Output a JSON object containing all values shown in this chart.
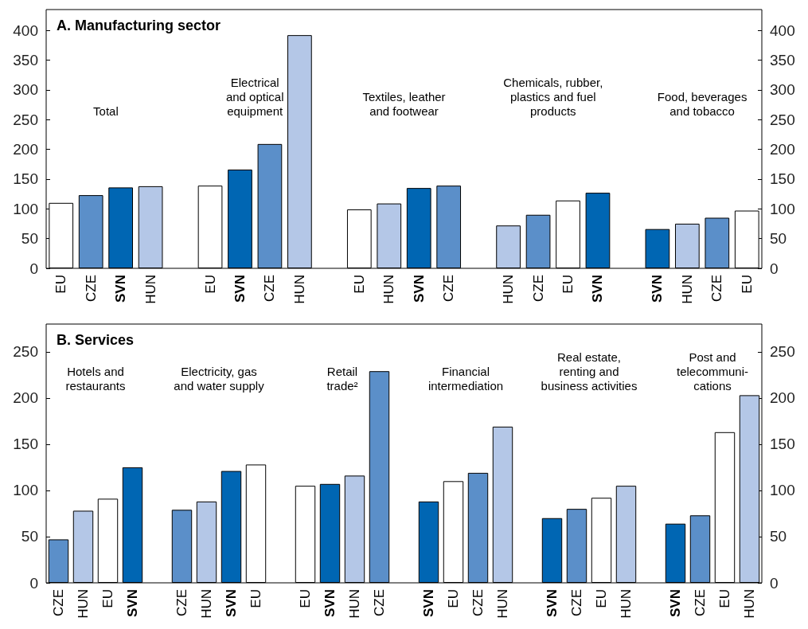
{
  "chart_data": [
    {
      "type": "bar",
      "title": "A. Manufacturing sector",
      "categories": [
        "EU",
        "CZE",
        "SVN",
        "HUN",
        null,
        "EU",
        "SVN",
        "CZE",
        "HUN",
        null,
        "EU",
        "HUN",
        "SVN",
        "CZE",
        null,
        "HUN",
        "CZE",
        "EU",
        "SVN",
        null,
        "SVN",
        "HUN",
        "CZE",
        "EU"
      ],
      "values": [
        110,
        123,
        136,
        138,
        null,
        139,
        166,
        209,
        392,
        null,
        99,
        109,
        135,
        139,
        null,
        72,
        90,
        114,
        127,
        null,
        66,
        75,
        85,
        97
      ],
      "colors": [
        "#ffffff",
        "#5b8fc9",
        "#0066b3",
        "#b4c7e7",
        "#ffffff",
        "#ffffff",
        "#0066b3",
        "#5b8fc9",
        "#b4c7e7",
        "#ffffff",
        "#ffffff",
        "#b4c7e7",
        "#0066b3",
        "#5b8fc9",
        "#ffffff",
        "#b4c7e7",
        "#5b8fc9",
        "#ffffff",
        "#0066b3",
        "#ffffff",
        "#0066b3",
        "#b4c7e7",
        "#5b8fc9",
        "#ffffff"
      ],
      "annotations": [
        "Total",
        "Electrical\nand optical\nequipment",
        "Textiles, leather\nand footwear",
        "Chemicals, rubber,\nplastics and fuel\nproducts",
        "Food, beverages\nand tobacco"
      ],
      "ylim": [
        0,
        435
      ],
      "yticks": [
        0,
        50,
        100,
        150,
        200,
        250,
        300,
        350,
        400
      ],
      "y2lim": [
        0,
        435
      ],
      "y2ticks": [
        0,
        50,
        100,
        150,
        200,
        250,
        300,
        350,
        400
      ]
    },
    {
      "type": "bar",
      "title": "B. Services",
      "categories": [
        "CZE",
        "HUN",
        "EU",
        "SVN",
        null,
        "CZE",
        "HUN",
        "SVN",
        "EU",
        null,
        "EU",
        "SVN",
        "HUN",
        "CZE",
        null,
        "SVN",
        "EU",
        "CZE",
        "HUN",
        null,
        "SVN",
        "CZE",
        "EU",
        "HUN",
        null,
        "SVN",
        "CZE",
        "EU",
        "HUN"
      ],
      "values": [
        47,
        78,
        91,
        125,
        null,
        79,
        88,
        121,
        128,
        null,
        105,
        107,
        116,
        229,
        null,
        88,
        110,
        119,
        169,
        null,
        70,
        80,
        92,
        105,
        null,
        64,
        73,
        163,
        203
      ],
      "colors": [
        "#5b8fc9",
        "#b4c7e7",
        "#ffffff",
        "#0066b3",
        "#ffffff",
        "#5b8fc9",
        "#b4c7e7",
        "#0066b3",
        "#ffffff",
        "#ffffff",
        "#ffffff",
        "#0066b3",
        "#b4c7e7",
        "#5b8fc9",
        "#ffffff",
        "#0066b3",
        "#ffffff",
        "#5b8fc9",
        "#b4c7e7",
        "#ffffff",
        "#0066b3",
        "#5b8fc9",
        "#ffffff",
        "#b4c7e7",
        "#ffffff",
        "#0066b3",
        "#5b8fc9",
        "#ffffff",
        "#b4c7e7"
      ],
      "annotations": [
        "Hotels and\nrestaurants",
        "Electricity, gas\nand water supply",
        "Retail\ntrade²",
        "Financial\nintermediation",
        "Real estate,\nrenting and\nbusiness activities",
        "Post and\ntelecommuni-\ncations"
      ],
      "ylim": [
        0,
        280
      ],
      "yticks": [
        0,
        50,
        100,
        150,
        200,
        250
      ],
      "y2lim": [
        0,
        280
      ],
      "y2ticks": [
        0,
        50,
        100,
        150,
        200,
        250
      ]
    }
  ]
}
